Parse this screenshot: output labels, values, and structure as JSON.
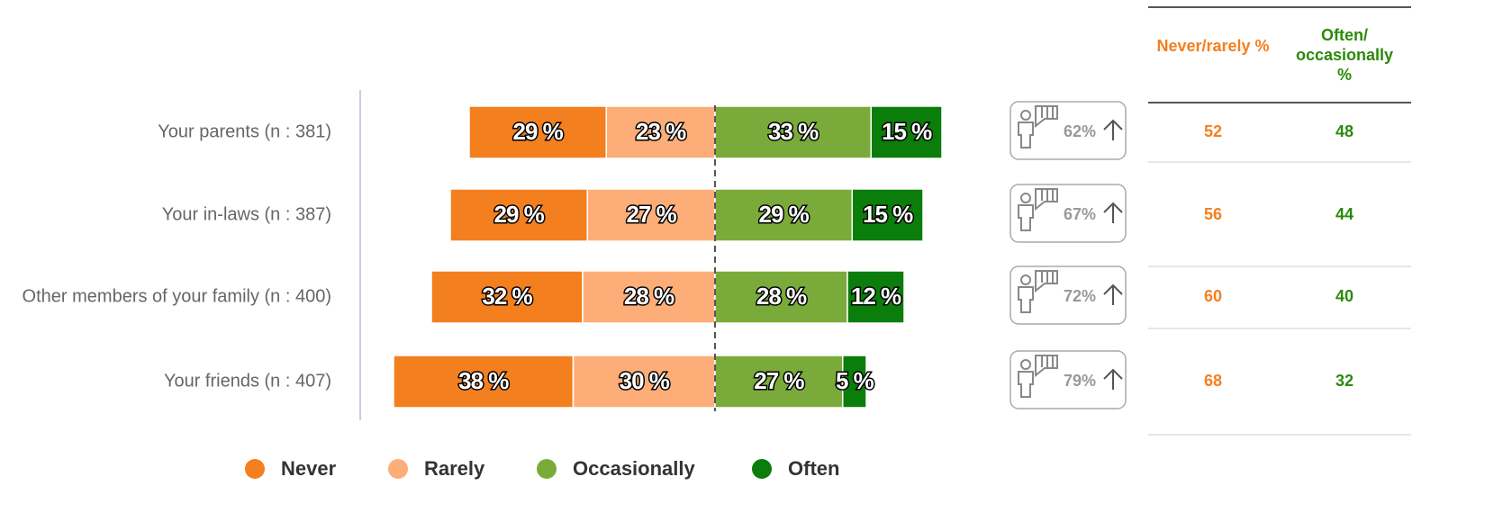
{
  "chart_data": {
    "type": "bar",
    "categories": [
      "Your parents (n : 381)",
      "Your in-laws (n : 387)",
      "Other members of your family (n : 400)",
      "Your friends (n : 407)"
    ],
    "series": [
      {
        "name": "Never",
        "color": "#f47f1f",
        "values": [
          29,
          29,
          32,
          38
        ],
        "value_labels": [
          "29 %",
          "29 %",
          "32 %",
          "38 %"
        ]
      },
      {
        "name": "Rarely",
        "color": "#fdae78",
        "values": [
          23,
          27,
          28,
          30
        ],
        "value_labels": [
          "23 %",
          "27 %",
          "28 %",
          "30 %"
        ]
      },
      {
        "name": "Occasionally",
        "color": "#7aab3a",
        "values": [
          33,
          29,
          28,
          27
        ],
        "value_labels": [
          "33 %",
          "29 %",
          "28 %",
          "27 %"
        ]
      },
      {
        "name": "Often",
        "color": "#0a7d0a",
        "values": [
          15,
          15,
          12,
          5
        ],
        "value_labels": [
          "15 %",
          "15 %",
          "12 %",
          "5 %"
        ]
      }
    ]
  },
  "badges": [
    "62%",
    "67%",
    "72%",
    "79%"
  ],
  "table": {
    "headers": [
      "Never/rarely %",
      "Often/ occasionally %"
    ],
    "rows": [
      [
        "52",
        "48"
      ],
      [
        "56",
        "44"
      ],
      [
        "60",
        "40"
      ],
      [
        "68",
        "32"
      ]
    ]
  }
}
